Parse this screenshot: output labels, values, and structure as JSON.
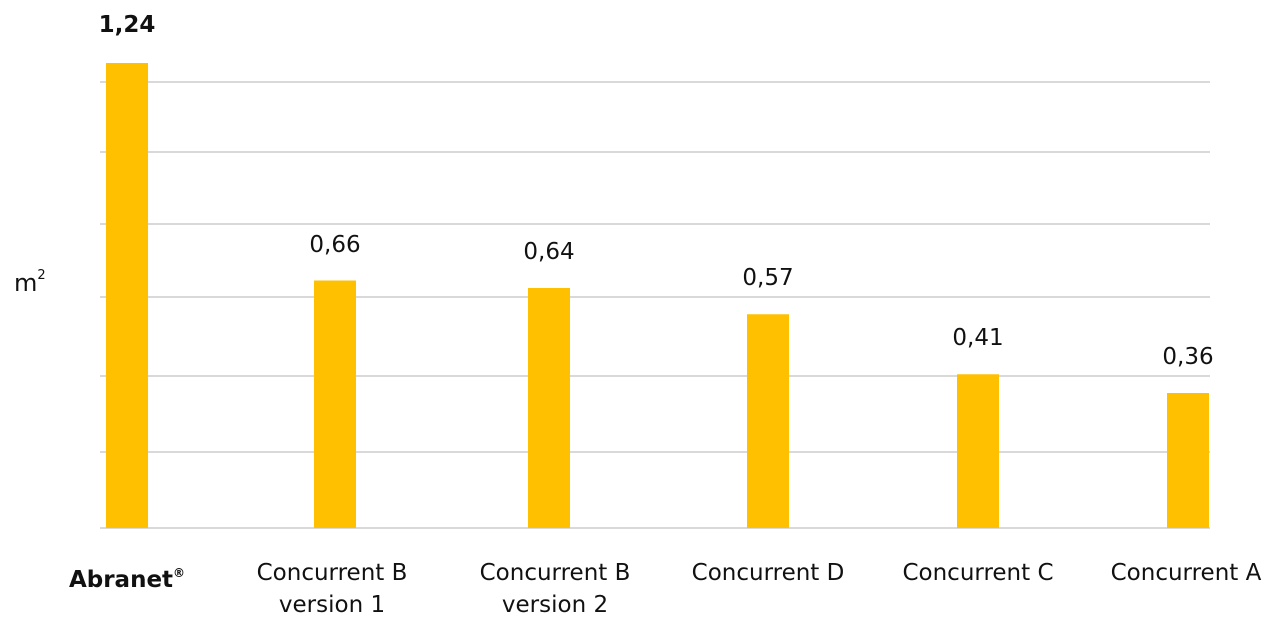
{
  "chart_data": {
    "type": "bar",
    "title": "",
    "xlabel": "",
    "ylabel": "m²",
    "ylabel_base": "m",
    "ylabel_sup": "2",
    "grid": true,
    "ylim": [
      0,
      1.24
    ],
    "bar_color": "#FFC000",
    "grid_color": "#D9D9D9",
    "categories": [
      "Abranet®",
      "Concurrent B\nversion 1",
      "Concurrent B\nversion 2",
      "Concurrent D",
      "Concurrent C",
      "Concurrent A"
    ],
    "values": [
      1.24,
      0.66,
      0.64,
      0.57,
      0.41,
      0.36
    ],
    "value_labels": [
      "1,24",
      "0,66",
      "0,64",
      "0,57",
      "0,41",
      "0,36"
    ],
    "highlight_index": 0
  }
}
